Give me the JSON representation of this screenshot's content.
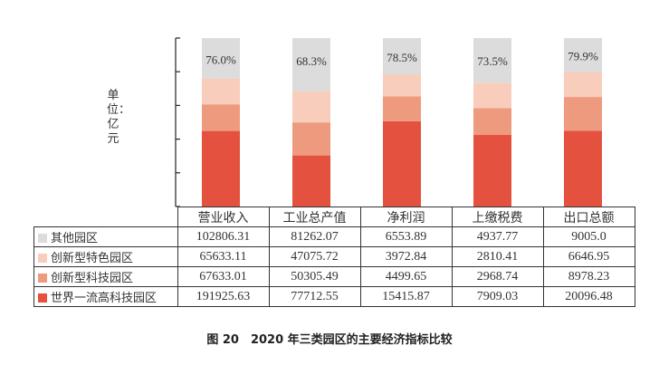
{
  "chart_data": {
    "type": "bar",
    "stacked": "percent",
    "title": "图 20　2020 年三类园区的主要经济指标比较",
    "ylabel": "单位：亿元",
    "categories": [
      "营业收入",
      "工业总产值",
      "净利润",
      "上缴税费",
      "出口总额"
    ],
    "series": [
      {
        "name": "其他园区",
        "color": "#dcdcdc",
        "values": [
          102806.31,
          81262.07,
          6553.89,
          4937.77,
          9005.0
        ],
        "display": [
          "102806.31",
          "81262.07",
          "6553.89",
          "4937.77",
          "9005.0"
        ]
      },
      {
        "name": "创新型特色园区",
        "color": "#f8cdbb",
        "values": [
          65633.11,
          47075.72,
          3972.84,
          2810.41,
          6646.95
        ],
        "display": [
          "65633.11",
          "47075.72",
          "3972.84",
          "2810.41",
          "6646.95"
        ]
      },
      {
        "name": "创新型科技园区",
        "color": "#ee9a7f",
        "values": [
          67633.01,
          50305.49,
          4499.65,
          2968.74,
          8978.23
        ],
        "display": [
          "67633.01",
          "50305.49",
          "4499.65",
          "2968.74",
          "8978.23"
        ]
      },
      {
        "name": "世界一流高科技园区",
        "color": "#e4513e",
        "values": [
          191925.63,
          77712.55,
          15415.87,
          7909.03,
          20096.48
        ],
        "display": [
          "191925.63",
          "77712.55",
          "15415.87",
          "7909.03",
          "20096.48"
        ]
      }
    ],
    "annotations": [
      "76.0%",
      "68.3%",
      "78.5%",
      "73.5%",
      "79.9%"
    ]
  }
}
